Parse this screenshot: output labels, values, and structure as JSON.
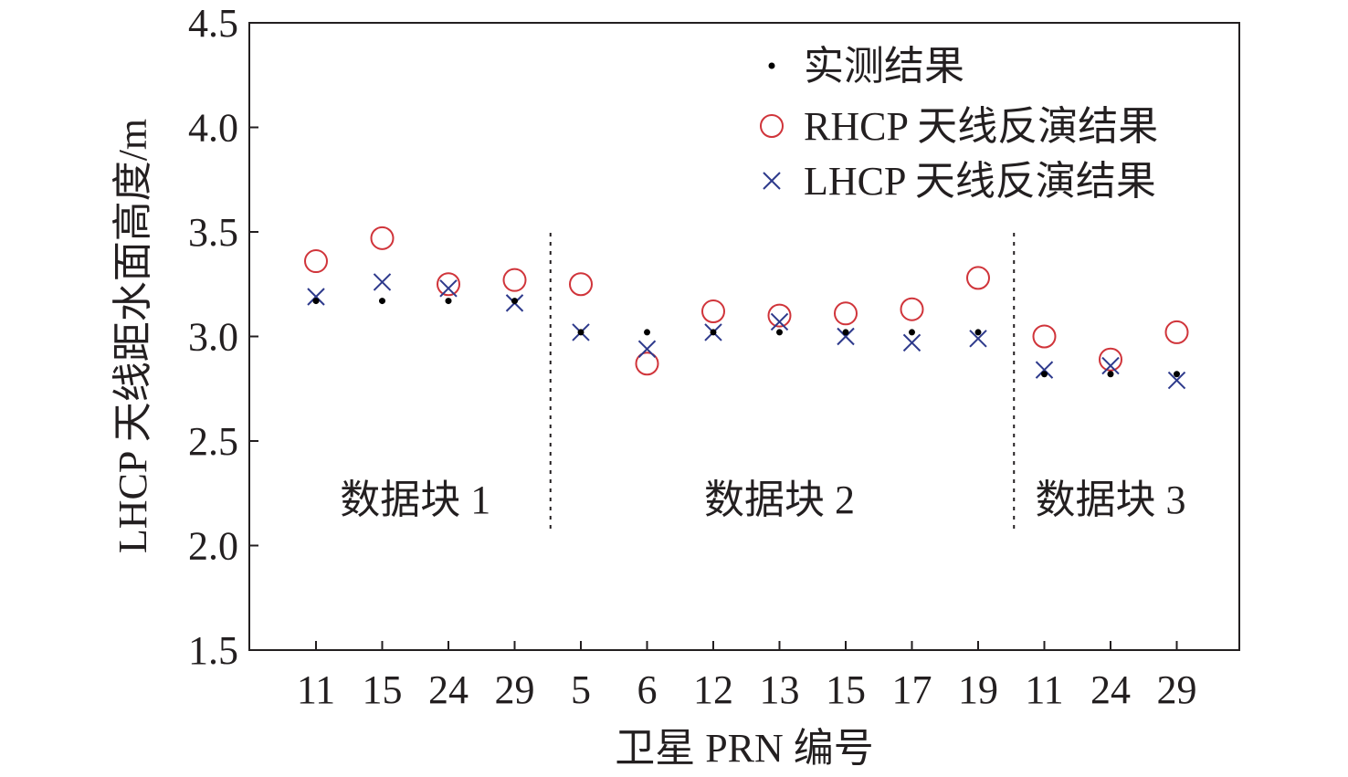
{
  "chart_data": {
    "type": "scatter",
    "xlabel": "卫星 PRN 编号",
    "ylabel": "LHCP 天线距水面高度/m",
    "ylim": [
      1.5,
      4.5
    ],
    "yticks": [
      "1.5",
      "2.0",
      "2.5",
      "3.0",
      "3.5",
      "4.0",
      "4.5"
    ],
    "categories": [
      "11",
      "15",
      "24",
      "29",
      "5",
      "6",
      "12",
      "13",
      "15",
      "17",
      "19",
      "11",
      "24",
      "29"
    ],
    "legend_position": "top-right",
    "grid": false,
    "series": [
      {
        "name": "实测结果",
        "marker": "dot",
        "color": "#000000",
        "values": [
          3.17,
          3.17,
          3.17,
          3.17,
          3.02,
          3.02,
          3.02,
          3.02,
          3.02,
          3.02,
          3.02,
          2.82,
          2.82,
          2.82
        ]
      },
      {
        "name": "RHCP 天线反演结果",
        "marker": "circle",
        "color": "#d0343a",
        "values": [
          3.36,
          3.47,
          3.25,
          3.27,
          3.25,
          2.87,
          3.12,
          3.1,
          3.11,
          3.13,
          3.28,
          3.0,
          2.89,
          3.02
        ]
      },
      {
        "name": "LHCP 天线反演结果",
        "marker": "x",
        "color": "#2e3a8c",
        "values": [
          3.19,
          3.26,
          3.23,
          3.16,
          3.02,
          2.94,
          3.02,
          3.07,
          3.0,
          2.97,
          2.99,
          2.84,
          2.86,
          2.79
        ]
      }
    ],
    "blocks": [
      {
        "label": "数据块 1",
        "start": 0,
        "end": 3
      },
      {
        "label": "数据块 2",
        "start": 4,
        "end": 10
      },
      {
        "label": "数据块 3",
        "start": 11,
        "end": 13
      }
    ]
  }
}
